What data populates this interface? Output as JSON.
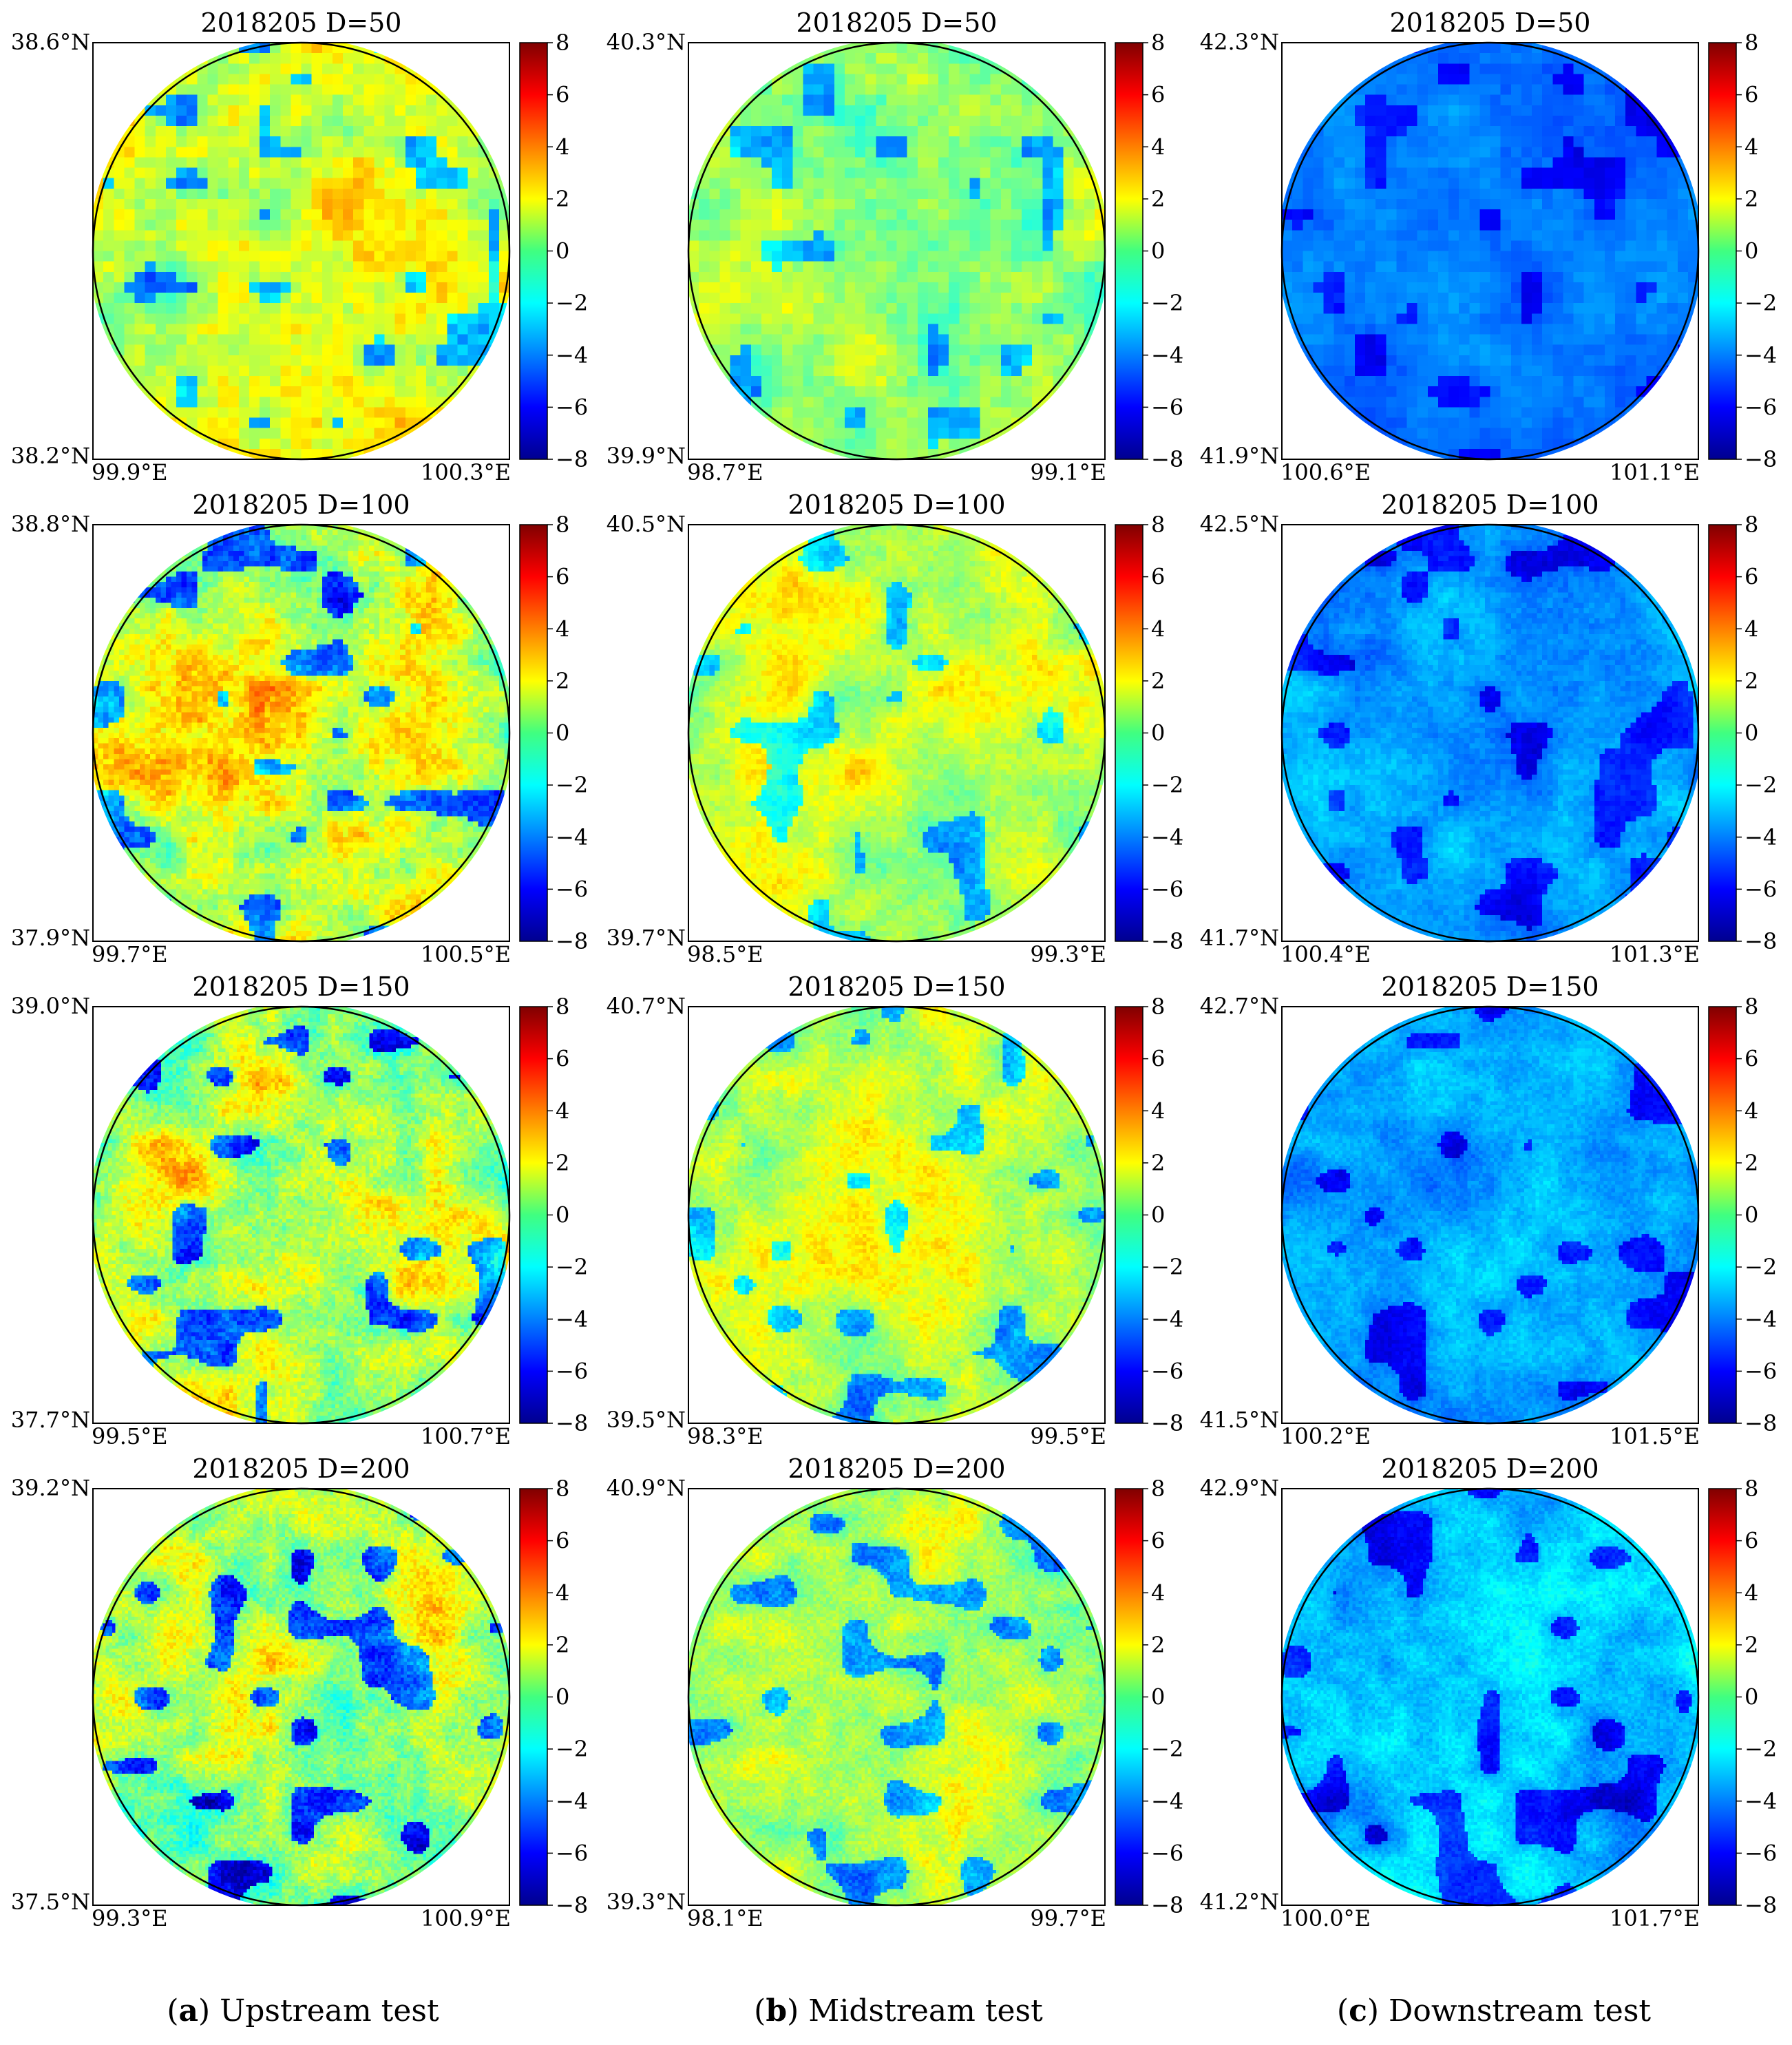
{
  "figure": {
    "colorbar_ticks": [
      "8",
      "6",
      "4",
      "2",
      "0",
      "−2",
      "−4",
      "−6",
      "−8"
    ],
    "colormap": "jet",
    "colormap_range": [
      -8,
      8
    ],
    "captions": [
      {
        "letter": "a",
        "text": " Upstream test"
      },
      {
        "letter": "b",
        "text": " Midstream test"
      },
      {
        "letter": "c",
        "text": " Downstream test"
      }
    ]
  },
  "chart_data": [
    {
      "type": "heatmap",
      "title": "2018205 D=50",
      "lat_top": "38.6°N",
      "lat_bottom": "38.2°N",
      "lon_left": "99.9°E",
      "lon_right": "100.3°E",
      "mean_value": 1.5,
      "spread": 2.5,
      "grid_cells": 40
    },
    {
      "type": "heatmap",
      "title": "2018205 D=50",
      "lat_top": "40.3°N",
      "lat_bottom": "39.9°N",
      "lon_left": "98.7°E",
      "lon_right": "99.1°E",
      "mean_value": 0.5,
      "spread": 2.0,
      "grid_cells": 40
    },
    {
      "type": "heatmap",
      "title": "2018205 D=50",
      "lat_top": "42.3°N",
      "lat_bottom": "41.9°N",
      "lon_left": "100.6°E",
      "lon_right": "101.1°E",
      "mean_value": -4.0,
      "spread": 1.0,
      "grid_cells": 40
    },
    {
      "type": "heatmap",
      "title": "2018205 D=100",
      "lat_top": "38.8°N",
      "lat_bottom": "37.9°N",
      "lon_left": "99.7°E",
      "lon_right": "100.5°E",
      "mean_value": 1.5,
      "spread": 3.0,
      "grid_cells": 80
    },
    {
      "type": "heatmap",
      "title": "2018205 D=100",
      "lat_top": "40.5°N",
      "lat_bottom": "39.7°N",
      "lon_left": "98.5°E",
      "lon_right": "99.3°E",
      "mean_value": 1.0,
      "spread": 2.0,
      "grid_cells": 80
    },
    {
      "type": "heatmap",
      "title": "2018205 D=100",
      "lat_top": "42.5°N",
      "lat_bottom": "41.7°N",
      "lon_left": "100.4°E",
      "lon_right": "101.3°E",
      "mean_value": -3.5,
      "spread": 1.3,
      "grid_cells": 80
    },
    {
      "type": "heatmap",
      "title": "2018205 D=150",
      "lat_top": "39.0°N",
      "lat_bottom": "37.7°N",
      "lon_left": "99.5°E",
      "lon_right": "100.7°E",
      "mean_value": 1.0,
      "spread": 3.2,
      "grid_cells": 110
    },
    {
      "type": "heatmap",
      "title": "2018205 D=150",
      "lat_top": "40.7°N",
      "lat_bottom": "39.5°N",
      "lon_left": "98.3°E",
      "lon_right": "99.5°E",
      "mean_value": 1.0,
      "spread": 2.2,
      "grid_cells": 110
    },
    {
      "type": "heatmap",
      "title": "2018205 D=150",
      "lat_top": "42.7°N",
      "lat_bottom": "41.5°N",
      "lon_left": "100.2°E",
      "lon_right": "101.5°E",
      "mean_value": -3.5,
      "spread": 1.4,
      "grid_cells": 110
    },
    {
      "type": "heatmap",
      "title": "2018205 D=200",
      "lat_top": "39.2°N",
      "lat_bottom": "37.5°N",
      "lon_left": "99.3°E",
      "lon_right": "100.9°E",
      "mean_value": 0.5,
      "spread": 3.2,
      "grid_cells": 130
    },
    {
      "type": "heatmap",
      "title": "2018205 D=200",
      "lat_top": "40.9°N",
      "lat_bottom": "39.3°N",
      "lon_left": "98.1°E",
      "lon_right": "99.7°E",
      "mean_value": 0.5,
      "spread": 2.4,
      "grid_cells": 130
    },
    {
      "type": "heatmap",
      "title": "2018205 D=200",
      "lat_top": "42.9°N",
      "lat_bottom": "41.2°N",
      "lon_left": "100.0°E",
      "lon_right": "101.7°E",
      "mean_value": -3.0,
      "spread": 1.6,
      "grid_cells": 130
    }
  ]
}
